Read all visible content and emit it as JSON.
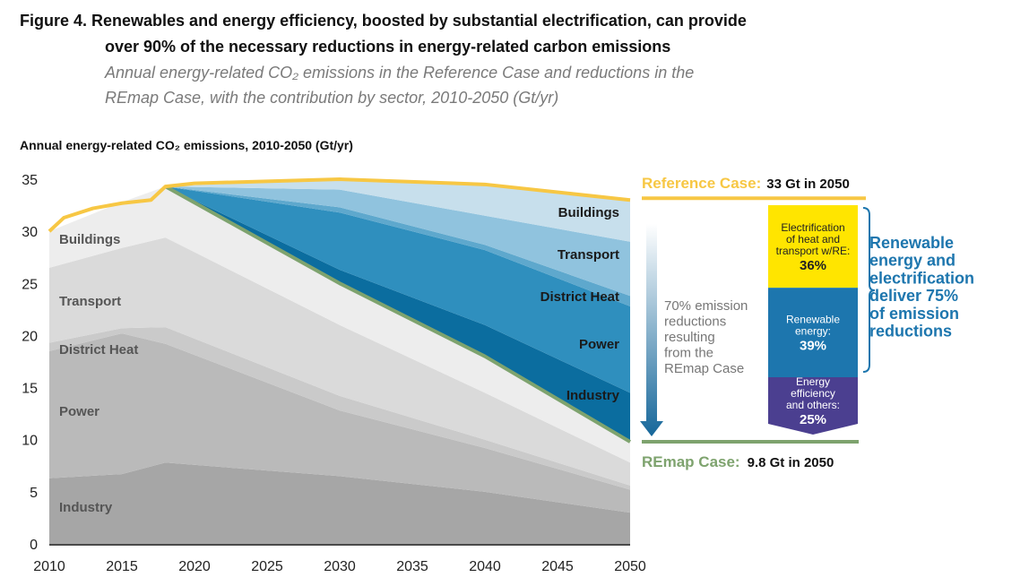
{
  "chart_data": {
    "type": "area",
    "title": [
      "Figure 4. Renewables and energy efficiency, boosted by substantial electrification, can provide",
      "over 90% of the necessary reductions in energy-related carbon emissions"
    ],
    "subtitle": [
      "Annual energy-related CO₂ emissions in the Reference Case and reductions in the",
      "REmap Case, with the contribution by sector, 2010-2050 (Gt/yr)"
    ],
    "y_axis_title": "Annual energy-related CO₂ emissions, 2010-2050 (Gt/yr)",
    "xlim": [
      2010,
      2050
    ],
    "xticks": [
      2010,
      2015,
      2020,
      2025,
      2030,
      2035,
      2040,
      2045,
      2050
    ],
    "ylim": [
      0,
      35
    ],
    "yticks": [
      0,
      5,
      10,
      15,
      20,
      25,
      30,
      35
    ],
    "grid": false,
    "x": [
      2010,
      2015,
      2018,
      2030,
      2040,
      2050
    ],
    "series": [
      {
        "name": "Industry",
        "color": "#a6a6a6",
        "values": [
          6.3,
          6.7,
          7.8,
          6.5,
          5.0,
          3.0
        ]
      },
      {
        "name": "Power",
        "color": "#bababa",
        "values": [
          12.2,
          13.5,
          11.4,
          6.3,
          4.2,
          2.2
        ]
      },
      {
        "name": "District Heat",
        "color": "#cacaca",
        "values": [
          0.8,
          0.5,
          1.6,
          1.4,
          0.8,
          0.4
        ]
      },
      {
        "name": "Transport",
        "color": "#dadada",
        "values": [
          7.2,
          7.7,
          8.6,
          6.8,
          4.5,
          2.2
        ]
      },
      {
        "name": "Buildings",
        "color": "#ededed",
        "values": [
          3.5,
          4.4,
          4.9,
          4.0,
          3.5,
          2.0
        ]
      }
    ],
    "reductions": {
      "x": [
        2018,
        2030,
        2040,
        2050
      ],
      "series": [
        {
          "name": "Industry",
          "color": "#0b6d9f",
          "values": [
            0,
            1.3,
            3.0,
            4.7
          ]
        },
        {
          "name": "Power",
          "color": "#2f8fbe",
          "values": [
            0,
            5.5,
            7.2,
            8.3
          ]
        },
        {
          "name": "District Heat",
          "color": "#5ea8cd",
          "values": [
            0,
            0.5,
            0.5,
            1.0
          ]
        },
        {
          "name": "Transport",
          "color": "#90c3de",
          "values": [
            0,
            1.7,
            2.8,
            5.2
          ]
        },
        {
          "name": "Buildings",
          "color": "#c7dfec",
          "values": [
            0,
            1.0,
            3.0,
            4.0
          ]
        }
      ]
    },
    "reference": {
      "name": "Reference Case:",
      "note": "33 Gt in 2050",
      "color": "#f7c744",
      "x": [
        2010,
        2011,
        2013,
        2015,
        2017,
        2018,
        2020,
        2030,
        2040,
        2050
      ],
      "values": [
        30.0,
        31.3,
        32.2,
        32.7,
        33.0,
        34.3,
        34.6,
        35.0,
        34.5,
        33.0
      ]
    },
    "remap": {
      "name": "REmap Case:",
      "note": "9.8 Gt in 2050",
      "color": "#7ea36e",
      "x": [
        2018,
        2030,
        2040,
        2050
      ],
      "values": [
        34.3,
        25.0,
        18.0,
        9.8
      ]
    },
    "arrow_note": [
      "70% emission",
      "reductions",
      "resulting",
      "from the",
      "REmap Case"
    ],
    "breakdown": {
      "labels": [
        [
          "Electrification",
          "of heat and",
          "transport w/RE:"
        ],
        [
          "Renewable",
          "energy:"
        ],
        [
          "Energy",
          "efficiency",
          "and others:"
        ]
      ],
      "values": [
        36,
        39,
        25
      ],
      "value_labels": [
        "36%",
        "39%",
        "25%"
      ],
      "colors": [
        "#ffe500",
        "#1d76ae",
        "#4b3f90"
      ],
      "summary": [
        "Renewable",
        "energy and",
        "electrification",
        "deliver 75%",
        "of emission",
        "reductions"
      ]
    }
  }
}
